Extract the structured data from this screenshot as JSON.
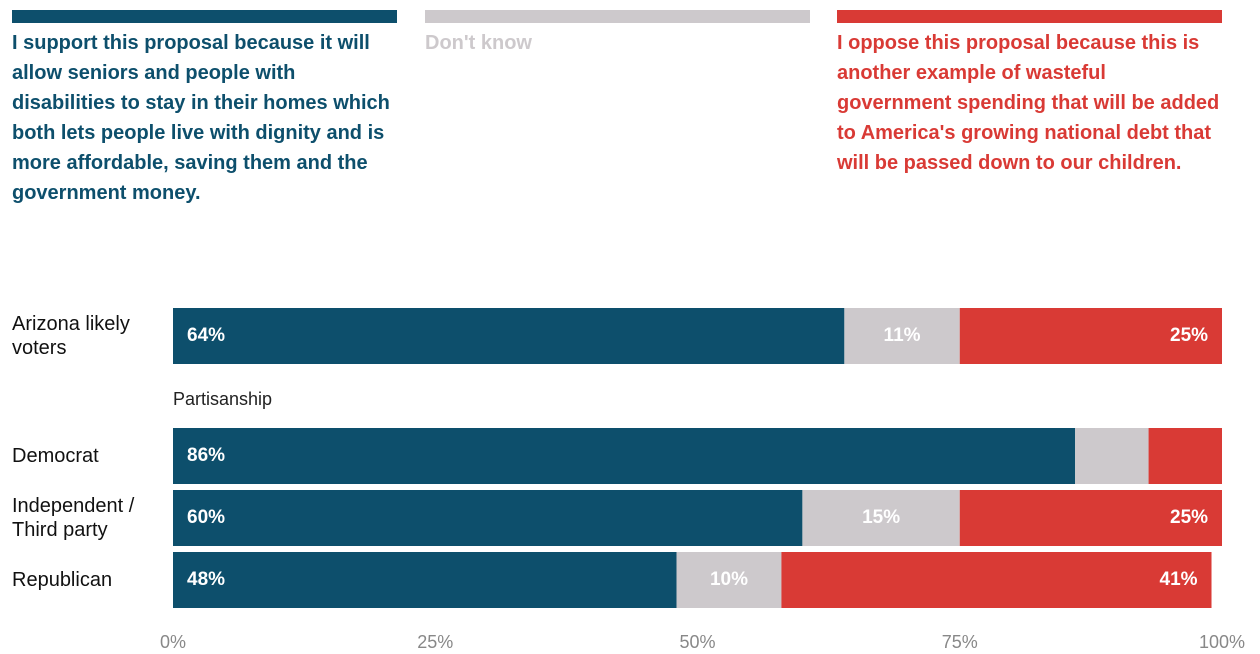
{
  "chart_data": {
    "type": "stacked_bar_horizontal",
    "categories": [
      "Arizona likely voters",
      "Democrat",
      "Independent / Third party",
      "Republican"
    ],
    "group_label": "Partisanship",
    "series": [
      {
        "name": "I support this proposal because it will allow seniors and people with disabilities to stay in their homes which both lets people live with dignity and is more affordable, saving them and the government money.",
        "color": "#0d4f6c",
        "values": [
          64,
          86,
          60,
          48
        ],
        "value_labels": [
          "64%",
          "86%",
          "60%",
          "48%"
        ]
      },
      {
        "name": "Don't know",
        "color": "#cdc9cc",
        "values": [
          11,
          7,
          15,
          10
        ],
        "value_labels": [
          "11%",
          null,
          "15%",
          "10%"
        ]
      },
      {
        "name": "I oppose this proposal because this is another example of wasteful government spending that will be added to America's growing national debt that will be passed down to our children.",
        "color": "#d93a35",
        "values": [
          25,
          7,
          25,
          41
        ],
        "value_labels": [
          "25%",
          null,
          "25%",
          "41%"
        ]
      }
    ],
    "xlim": [
      0,
      100
    ],
    "xticks": [
      {
        "value": 0,
        "label": "0%"
      },
      {
        "value": 25,
        "label": "25%"
      },
      {
        "value": 50,
        "label": "50%"
      },
      {
        "value": 75,
        "label": "75%"
      },
      {
        "value": 100,
        "label": "100%"
      }
    ]
  }
}
